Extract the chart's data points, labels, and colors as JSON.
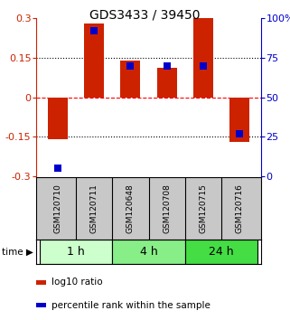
{
  "title": "GDS3433 / 39450",
  "samples": [
    "GSM120710",
    "GSM120711",
    "GSM120648",
    "GSM120708",
    "GSM120715",
    "GSM120716"
  ],
  "log10_ratio": [
    -0.16,
    0.28,
    0.14,
    0.11,
    0.3,
    -0.17
  ],
  "percentile_rank": [
    5,
    92,
    70,
    70,
    70,
    27
  ],
  "time_groups": [
    {
      "label": "1 h",
      "indices": [
        0,
        1
      ],
      "color": "#ccffcc"
    },
    {
      "label": "4 h",
      "indices": [
        2,
        3
      ],
      "color": "#88ee88"
    },
    {
      "label": "24 h",
      "indices": [
        4,
        5
      ],
      "color": "#44dd44"
    }
  ],
  "ylim_left": [
    -0.3,
    0.3
  ],
  "ylim_right": [
    0,
    100
  ],
  "yticks_left": [
    -0.3,
    -0.15,
    0,
    0.15,
    0.3
  ],
  "yticks_right": [
    0,
    25,
    50,
    75,
    100
  ],
  "ytick_labels_right": [
    "0",
    "25",
    "50",
    "75",
    "100%"
  ],
  "hlines": [
    0.15,
    0.0,
    -0.15
  ],
  "hline_styles": [
    "dotted",
    "dashed",
    "dotted"
  ],
  "hline_colors": [
    "black",
    "red",
    "black"
  ],
  "bar_color": "#cc2200",
  "dot_color": "#0000cc",
  "bar_width": 0.55,
  "dot_size": 40,
  "legend_labels": [
    "log10 ratio",
    "percentile rank within the sample"
  ],
  "legend_colors": [
    "#cc2200",
    "#0000cc"
  ],
  "sample_row_color": "#c8c8c8",
  "title_fontsize": 10,
  "axis_fontsize": 8,
  "sample_fontsize": 6.5,
  "time_fontsize": 9
}
